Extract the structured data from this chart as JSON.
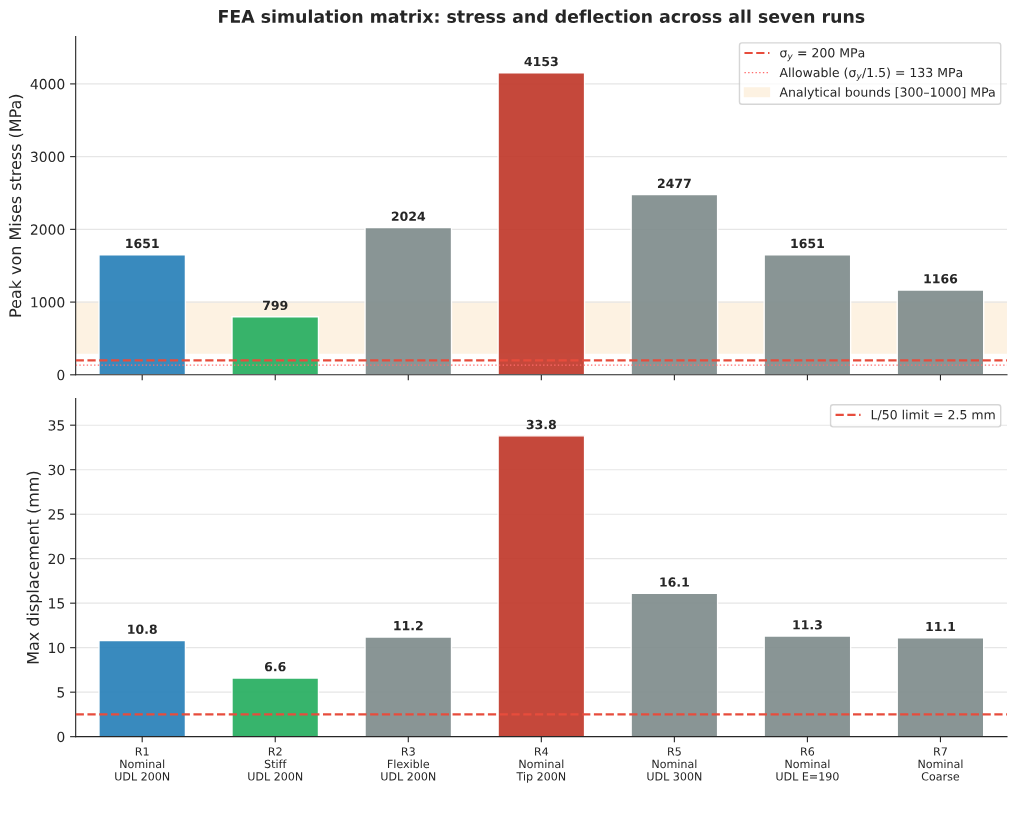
{
  "chart_data": [
    {
      "type": "bar",
      "title": "FEA simulation matrix: stress and deflection across all seven runs",
      "ylabel": "Peak von Mises stress (MPa)",
      "categories": [
        null,
        null,
        null,
        null,
        null,
        null,
        null
      ],
      "values": [
        1651,
        799,
        2024,
        4153,
        2477,
        1651,
        1166
      ],
      "colors": [
        "#2980b9",
        "#27ae60",
        "#7f8c8d",
        "#c0392b",
        "#7f8c8d",
        "#7f8c8d",
        "#7f8c8d"
      ],
      "data_labels": true,
      "ylim": [
        0,
        4650
      ],
      "yticks": [
        0,
        1000,
        2000,
        3000,
        4000
      ],
      "grid": "y",
      "tick_labels": "y",
      "legend": "top right",
      "ref_lines": [
        {
          "axis": "y",
          "value": 200,
          "label": "σ$_{y}$ = 200 MPa",
          "color": "#e74c3c",
          "line_style": "dashed"
        },
        {
          "axis": "y",
          "value": 133,
          "label": "Allowable (σ$_{y}$/1.5) = 133 MPa",
          "color": "#ff6b6b",
          "line_style": "dotted"
        }
      ],
      "bands": [
        {
          "axis": "y",
          "from": 300,
          "to": 1000,
          "label": "Analytical bounds [300–1000] MPa",
          "color": "#fdf2e2"
        }
      ]
    },
    {
      "type": "bar",
      "ylabel": "Max displacement (mm)",
      "categories": [
        "R1\nNominal\nUDL 200N",
        "R2\nStiff\nUDL 200N",
        "R3\nFlexible\nUDL 200N",
        "R4\nNominal\nTip 200N",
        "R5\nNominal\nUDL 300N",
        "R6\nNominal\nUDL E=190",
        "R7\nNominal\nCoarse"
      ],
      "values": [
        10.8,
        6.6,
        11.2,
        33.8,
        16.1,
        11.3,
        11.1
      ],
      "colors": [
        "#2980b9",
        "#27ae60",
        "#7f8c8d",
        "#c0392b",
        "#7f8c8d",
        "#7f8c8d",
        "#7f8c8d"
      ],
      "data_labels": true,
      "ylim": [
        0,
        38
      ],
      "yticks": [
        0,
        5,
        10,
        15,
        20,
        25,
        30,
        35
      ],
      "grid": "y",
      "legend": "top right",
      "ref_lines": [
        {
          "axis": "y",
          "value": 2.5,
          "label": "L/50 limit = 2.5 mm",
          "color": "#e74c3c",
          "line_style": "dashed"
        }
      ]
    }
  ]
}
